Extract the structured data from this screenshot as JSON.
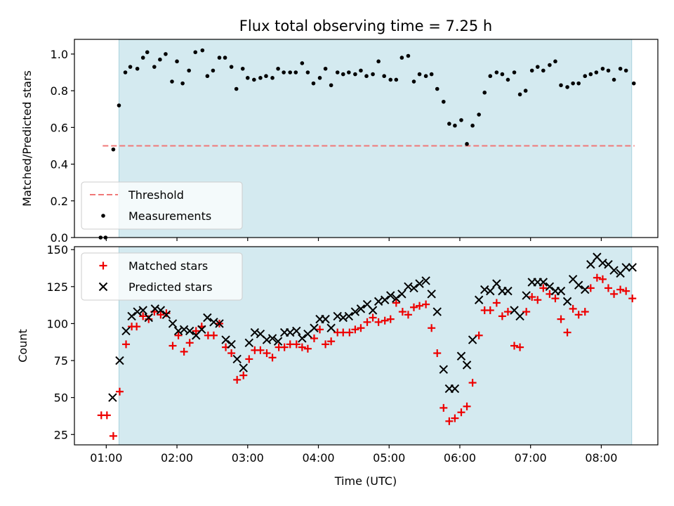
{
  "chart_data": [
    {
      "type": "scatter",
      "title": "Flux total observing time = 7.25 h",
      "xlabel": "",
      "ylabel": "Matched/Predicted stars",
      "xlim": [
        0.55,
        8.8
      ],
      "ylim": [
        0.0,
        1.08
      ],
      "yticks": [
        0.0,
        0.2,
        0.4,
        0.6,
        0.8,
        1.0
      ],
      "ytick_labels": [
        "0.0",
        "0.2",
        "0.4",
        "0.6",
        "0.8",
        "1.0"
      ],
      "observing_window": [
        1.18,
        8.43
      ],
      "threshold": {
        "label": "Threshold",
        "value": 0.5,
        "x_range": [
          0.95,
          8.47
        ],
        "color": "#f07878"
      },
      "series": [
        {
          "name": "Measurements",
          "marker": "dot",
          "color": "#000000",
          "x": [
            0.92,
            0.99,
            1.1,
            1.18,
            1.27,
            1.34,
            1.44,
            1.52,
            1.58,
            1.68,
            1.76,
            1.84,
            1.93,
            2.0,
            2.08,
            2.17,
            2.26,
            2.36,
            2.43,
            2.51,
            2.6,
            2.68,
            2.77,
            2.84,
            2.93,
            3.0,
            3.09,
            3.18,
            3.26,
            3.35,
            3.43,
            3.51,
            3.6,
            3.68,
            3.77,
            3.85,
            3.93,
            4.02,
            4.1,
            4.18,
            4.27,
            4.35,
            4.43,
            4.52,
            4.6,
            4.68,
            4.77,
            4.85,
            4.93,
            5.02,
            5.1,
            5.18,
            5.27,
            5.35,
            5.43,
            5.52,
            5.6,
            5.68,
            5.77,
            5.85,
            5.93,
            6.02,
            6.1,
            6.18,
            6.27,
            6.35,
            6.43,
            6.52,
            6.6,
            6.68,
            6.77,
            6.85,
            6.93,
            7.02,
            7.1,
            7.18,
            7.27,
            7.35,
            7.43,
            7.52,
            7.6,
            7.68,
            7.77,
            7.85,
            7.93,
            8.02,
            8.1,
            8.18,
            8.27,
            8.35,
            8.46
          ],
          "y": [
            0.0,
            0.0,
            0.48,
            0.72,
            0.9,
            0.93,
            0.92,
            0.98,
            1.01,
            0.93,
            0.97,
            1.0,
            0.85,
            0.96,
            0.84,
            0.91,
            1.01,
            1.02,
            0.88,
            0.91,
            0.98,
            0.98,
            0.93,
            0.81,
            0.92,
            0.87,
            0.86,
            0.87,
            0.88,
            0.87,
            0.92,
            0.9,
            0.9,
            0.9,
            0.95,
            0.9,
            0.84,
            0.87,
            0.92,
            0.83,
            0.9,
            0.89,
            0.9,
            0.89,
            0.91,
            0.88,
            0.89,
            0.96,
            0.88,
            0.86,
            0.86,
            0.98,
            0.99,
            0.85,
            0.89,
            0.88,
            0.89,
            0.81,
            0.74,
            0.62,
            0.61,
            0.64,
            0.51,
            0.61,
            0.67,
            0.79,
            0.88,
            0.9,
            0.89,
            0.86,
            0.9,
            0.78,
            0.8,
            0.91,
            0.93,
            0.91,
            0.94,
            0.96,
            0.83,
            0.82,
            0.84,
            0.84,
            0.88,
            0.89,
            0.9,
            0.92,
            0.91,
            0.86,
            0.92,
            0.91,
            0.84
          ]
        }
      ],
      "legend": {
        "placement": "lower-left",
        "entries": [
          "Threshold",
          "Measurements"
        ]
      }
    },
    {
      "type": "scatter",
      "title": "",
      "xlabel": "Time (UTC)",
      "ylabel": "Count",
      "xlim": [
        0.55,
        8.8
      ],
      "ylim": [
        18,
        152
      ],
      "yticks": [
        25,
        50,
        75,
        100,
        125,
        150
      ],
      "ytick_labels": [
        "25",
        "50",
        "75",
        "100",
        "125",
        "150"
      ],
      "xticks": [
        1,
        2,
        3,
        4,
        5,
        6,
        7,
        8
      ],
      "xtick_labels": [
        "01:00",
        "02:00",
        "03:00",
        "04:00",
        "05:00",
        "06:00",
        "07:00",
        "08:00"
      ],
      "observing_window": [
        1.18,
        8.43
      ],
      "series": [
        {
          "name": "Matched stars",
          "marker": "plus",
          "color": "#ee0000",
          "x": [
            0.93,
            1.01,
            1.1,
            1.19,
            1.28,
            1.36,
            1.43,
            1.52,
            1.6,
            1.68,
            1.77,
            1.85,
            1.94,
            2.02,
            2.1,
            2.18,
            2.27,
            2.35,
            2.44,
            2.52,
            2.6,
            2.69,
            2.77,
            2.85,
            2.94,
            3.02,
            3.1,
            3.18,
            3.27,
            3.35,
            3.44,
            3.52,
            3.6,
            3.69,
            3.77,
            3.85,
            3.94,
            4.02,
            4.1,
            4.18,
            4.27,
            4.35,
            4.44,
            4.52,
            4.6,
            4.69,
            4.77,
            4.85,
            4.94,
            5.02,
            5.1,
            5.19,
            5.27,
            5.35,
            5.43,
            5.52,
            5.6,
            5.68,
            5.77,
            5.85,
            5.93,
            6.02,
            6.1,
            6.18,
            6.27,
            6.35,
            6.43,
            6.52,
            6.6,
            6.68,
            6.77,
            6.85,
            6.94,
            7.02,
            7.1,
            7.18,
            7.27,
            7.35,
            7.43,
            7.52,
            7.6,
            7.68,
            7.77,
            7.85,
            7.94,
            8.02,
            8.1,
            8.18,
            8.27,
            8.35,
            8.44
          ],
          "y": [
            38,
            38,
            24,
            54,
            86,
            98,
            98,
            105,
            103,
            108,
            106,
            107,
            85,
            92,
            81,
            87,
            95,
            98,
            92,
            92,
            100,
            84,
            80,
            62,
            65,
            76,
            82,
            82,
            80,
            77,
            84,
            84,
            86,
            86,
            84,
            83,
            90,
            96,
            86,
            88,
            94,
            94,
            94,
            96,
            97,
            101,
            104,
            101,
            102,
            103,
            114,
            108,
            106,
            111,
            112,
            113,
            97,
            80,
            43,
            34,
            36,
            40,
            44,
            60,
            92,
            109,
            109,
            114,
            105,
            108,
            85,
            84,
            108,
            118,
            116,
            124,
            120,
            117,
            103,
            94,
            110,
            106,
            108,
            124,
            131,
            130,
            124,
            120,
            123,
            122,
            117
          ]
        },
        {
          "name": "Predicted stars",
          "marker": "x",
          "color": "#000000",
          "x": [
            1.09,
            1.19,
            1.28,
            1.36,
            1.44,
            1.52,
            1.6,
            1.69,
            1.77,
            1.85,
            1.94,
            2.02,
            2.1,
            2.18,
            2.27,
            2.35,
            2.43,
            2.52,
            2.6,
            2.69,
            2.77,
            2.85,
            2.94,
            3.02,
            3.1,
            3.18,
            3.27,
            3.35,
            3.43,
            3.52,
            3.6,
            3.69,
            3.77,
            3.85,
            3.94,
            4.02,
            4.1,
            4.18,
            4.27,
            4.35,
            4.43,
            4.52,
            4.6,
            4.69,
            4.77,
            4.85,
            4.94,
            5.02,
            5.1,
            5.18,
            5.27,
            5.35,
            5.43,
            5.52,
            5.6,
            5.68,
            5.77,
            5.85,
            5.93,
            6.02,
            6.1,
            6.18,
            6.27,
            6.35,
            6.43,
            6.52,
            6.6,
            6.68,
            6.77,
            6.85,
            6.94,
            7.02,
            7.1,
            7.18,
            7.27,
            7.35,
            7.43,
            7.52,
            7.6,
            7.68,
            7.77,
            7.85,
            7.94,
            8.02,
            8.1,
            8.18,
            8.27,
            8.35,
            8.44
          ],
          "y": [
            50,
            75,
            95,
            105,
            108,
            109,
            104,
            110,
            109,
            106,
            100,
            95,
            96,
            95,
            92,
            96,
            104,
            101,
            100,
            89,
            86,
            76,
            70,
            87,
            94,
            93,
            89,
            90,
            88,
            94,
            94,
            95,
            90,
            93,
            97,
            103,
            103,
            97,
            105,
            104,
            105,
            108,
            110,
            113,
            109,
            115,
            116,
            119,
            117,
            120,
            125,
            124,
            127,
            129,
            120,
            108,
            69,
            56,
            56,
            78,
            72,
            89,
            116,
            123,
            122,
            127,
            122,
            122,
            109,
            105,
            119,
            128,
            128,
            128,
            125,
            122,
            122,
            115,
            130,
            126,
            123,
            140,
            145,
            141,
            140,
            136,
            134,
            138,
            138
          ]
        }
      ],
      "legend": {
        "placement": "upper-left",
        "entries": [
          "Matched stars",
          "Predicted stars"
        ]
      }
    }
  ]
}
